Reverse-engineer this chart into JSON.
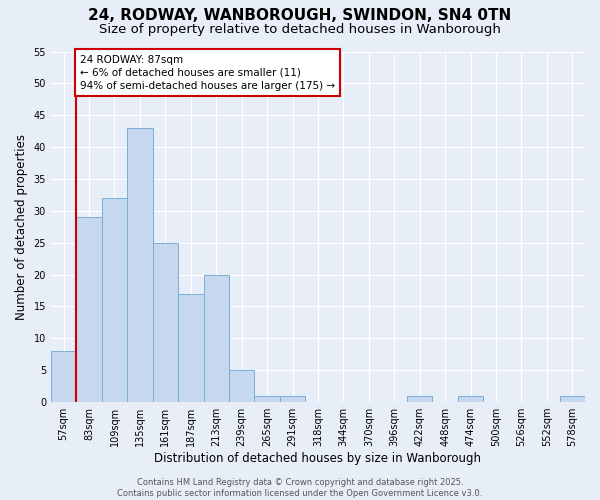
{
  "title_line1": "24, RODWAY, WANBOROUGH, SWINDON, SN4 0TN",
  "title_line2": "Size of property relative to detached houses in Wanborough",
  "xlabel": "Distribution of detached houses by size in Wanborough",
  "ylabel": "Number of detached properties",
  "categories": [
    "57sqm",
    "83sqm",
    "109sqm",
    "135sqm",
    "161sqm",
    "187sqm",
    "213sqm",
    "239sqm",
    "265sqm",
    "291sqm",
    "318sqm",
    "344sqm",
    "370sqm",
    "396sqm",
    "422sqm",
    "448sqm",
    "474sqm",
    "500sqm",
    "526sqm",
    "552sqm",
    "578sqm"
  ],
  "values": [
    8,
    29,
    32,
    43,
    25,
    17,
    20,
    5,
    1,
    1,
    0,
    0,
    0,
    0,
    1,
    0,
    1,
    0,
    0,
    0,
    1
  ],
  "bar_color": "#c5d8f0",
  "bar_edge_color": "#7bafd4",
  "red_line_index": 1,
  "annotation_text": "24 RODWAY: 87sqm\n← 6% of detached houses are smaller (11)\n94% of semi-detached houses are larger (175) →",
  "annotation_box_color": "#ffffff",
  "annotation_border_color": "#cc0000",
  "ylim": [
    0,
    55
  ],
  "yticks": [
    0,
    5,
    10,
    15,
    20,
    25,
    30,
    35,
    40,
    45,
    50,
    55
  ],
  "background_color": "#e8eef8",
  "grid_color": "#ffffff",
  "footer_text": "Contains HM Land Registry data © Crown copyright and database right 2025.\nContains public sector information licensed under the Open Government Licence v3.0.",
  "red_line_color": "#cc0000",
  "title_fontsize": 11,
  "subtitle_fontsize": 9.5,
  "tick_fontsize": 7,
  "ylabel_fontsize": 8.5,
  "xlabel_fontsize": 8.5,
  "annotation_fontsize": 7.5,
  "footer_fontsize": 6
}
